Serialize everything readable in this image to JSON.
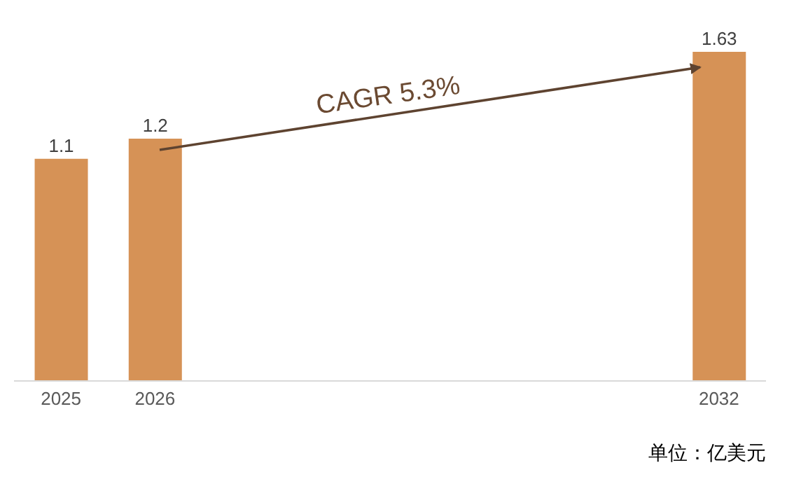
{
  "chart_data": {
    "type": "bar",
    "categories": [
      "2025",
      "2026",
      null,
      null,
      null,
      null,
      null,
      "2032"
    ],
    "values": [
      1.1,
      1.2,
      null,
      null,
      null,
      null,
      null,
      1.63
    ],
    "color": "#d69256",
    "data_labels": true,
    "annotations": [
      "CAGR 5.3%",
      "单位：亿美元"
    ]
  }
}
